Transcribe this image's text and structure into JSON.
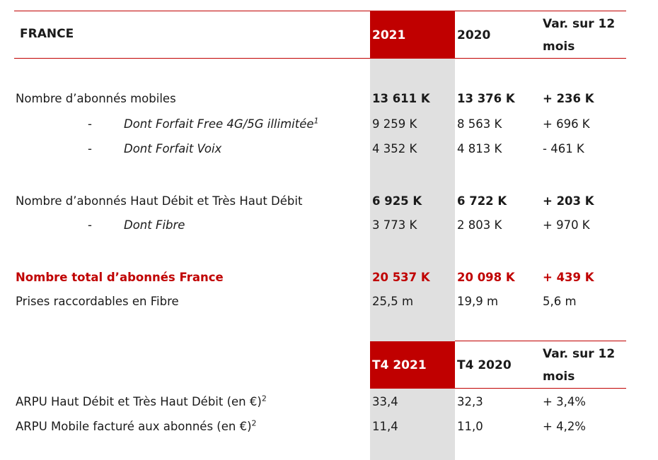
{
  "top_table": {
    "header": {
      "label": "FRANCE",
      "col1": "2021",
      "col2": "2020",
      "col3_line1": "Var. sur 12",
      "col3_line2": "mois"
    },
    "rows": {
      "mobile": {
        "label": "Nombre d’abonnés mobiles",
        "v2021": "13 611 K",
        "v2020": "13 376 K",
        "var": "+ 236 K"
      },
      "free_4g5g": {
        "dash": "-",
        "label": "Dont Forfait Free 4G/5G illimitée",
        "sup": "1",
        "v2021": "9 259 K",
        "v2020": "8 563 K",
        "var": "+ 696 K"
      },
      "voix": {
        "dash": "-",
        "label": "Dont Forfait Voix",
        "v2021": "4 352 K",
        "v2020": "4 813 K",
        "var": "- 461 K"
      },
      "broadband": {
        "label": "Nombre d’abonnés Haut Débit et Très Haut Débit",
        "v2021": "6 925 K",
        "v2020": "6 722 K",
        "var": "+ 203 K"
      },
      "fibre": {
        "dash": "-",
        "label": "Dont Fibre",
        "v2021": "3 773 K",
        "v2020": "2 803 K",
        "var": "+ 970 K"
      },
      "total": {
        "label": "Nombre total d’abonnés France",
        "v2021": "20 537 K",
        "v2020": "20 098 K",
        "var": "+ 439 K"
      },
      "prises": {
        "label": "Prises raccordables en Fibre",
        "v2021": "25,5 m",
        "v2020": "19,9 m",
        "var": "5,6 m"
      }
    }
  },
  "bottom_table": {
    "header": {
      "col1": "T4 2021",
      "col2": "T4 2020",
      "col3_line1": "Var. sur 12",
      "col3_line2": "mois"
    },
    "rows": {
      "arpu_hd": {
        "label": "ARPU Haut Débit et Très Haut Débit (en €)",
        "sup": "2",
        "v2021": "33,4",
        "v2020": "32,3",
        "var": "+ 3,4%"
      },
      "arpu_mobile": {
        "label": "ARPU Mobile facturé aux abonnés (en €)",
        "sup": "2",
        "v2021": "11,4",
        "v2020": "11,0",
        "var": "+ 4,2%"
      }
    }
  },
  "colors": {
    "accent_red": "#c00000",
    "column_band": "#e0e0e0"
  }
}
